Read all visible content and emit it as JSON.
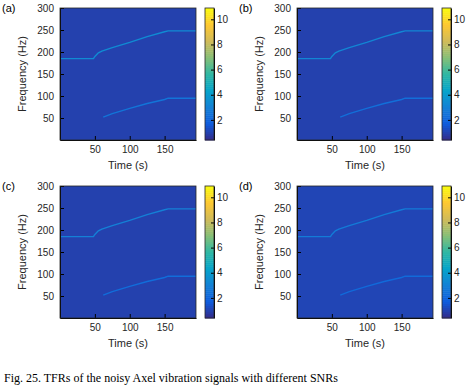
{
  "caption": "Fig. 25.  TFRs of the noisy Axel vibration signals with different SNRs",
  "chart_data": [
    {
      "type": "heatmap",
      "title": "(a)",
      "xlabel": "Time (s)",
      "ylabel": "Frequency (Hz)",
      "xlim": [
        0,
        195
      ],
      "xticks": [
        50,
        100,
        150
      ],
      "ylim": [
        0,
        300
      ],
      "yticks": [
        50,
        100,
        150,
        200,
        250,
        300
      ],
      "colorbar": {
        "range": [
          0.4,
          10.9
        ],
        "ticks": [
          2,
          4,
          6,
          8,
          10
        ]
      },
      "background": 1,
      "series": [
        {
          "x": [
            0,
            48,
            50,
            55,
            60,
            75,
            100,
            125,
            150,
            155,
            195
          ],
          "values": [
            185,
            185,
            190,
            198,
            202,
            210,
            222,
            235,
            246,
            248,
            248
          ],
          "level": 3.4
        },
        {
          "x": [
            62,
            75,
            100,
            125,
            150,
            155,
            195
          ],
          "values": [
            52,
            60,
            72,
            83,
            92,
            95,
            95
          ],
          "level": 2.6
        }
      ]
    },
    {
      "type": "heatmap",
      "title": "(b)",
      "xlabel": "Time (s)",
      "ylabel": "Frequency (Hz)",
      "xlim": [
        0,
        195
      ],
      "xticks": [
        50,
        100,
        150
      ],
      "ylim": [
        0,
        300
      ],
      "yticks": [
        50,
        100,
        150,
        200,
        250,
        300
      ],
      "colorbar": {
        "range": [
          0.4,
          10.9
        ],
        "ticks": [
          2,
          4,
          6,
          8,
          10
        ]
      },
      "background": 1,
      "series": [
        {
          "x": [
            0,
            48,
            50,
            55,
            60,
            75,
            100,
            125,
            150,
            155,
            195
          ],
          "values": [
            185,
            185,
            190,
            198,
            202,
            210,
            222,
            235,
            246,
            248,
            248
          ],
          "level": 3.2
        },
        {
          "x": [
            62,
            75,
            100,
            125,
            150,
            155,
            195
          ],
          "values": [
            52,
            60,
            72,
            83,
            92,
            95,
            95
          ],
          "level": 2.4
        }
      ]
    },
    {
      "type": "heatmap",
      "title": "(c)",
      "xlabel": "Time (s)",
      "ylabel": "Frequency (Hz)",
      "xlim": [
        0,
        195
      ],
      "xticks": [
        50,
        100,
        150
      ],
      "ylim": [
        0,
        300
      ],
      "yticks": [
        50,
        100,
        150,
        200,
        250,
        300
      ],
      "colorbar": {
        "range": [
          0.4,
          10.9
        ],
        "ticks": [
          2,
          4,
          6,
          8,
          10
        ]
      },
      "background": 1,
      "series": [
        {
          "x": [
            0,
            48,
            50,
            55,
            60,
            75,
            100,
            125,
            150,
            155,
            195
          ],
          "values": [
            185,
            185,
            190,
            198,
            202,
            210,
            222,
            235,
            246,
            248,
            248
          ],
          "level": 3.0
        },
        {
          "x": [
            62,
            75,
            100,
            125,
            150,
            155,
            195
          ],
          "values": [
            52,
            60,
            72,
            83,
            92,
            95,
            95
          ],
          "level": 2.3
        }
      ]
    },
    {
      "type": "heatmap",
      "title": "(d)",
      "xlabel": "Time (s)",
      "ylabel": "Frequency (Hz)",
      "xlim": [
        0,
        195
      ],
      "xticks": [
        50,
        100,
        150
      ],
      "ylim": [
        0,
        300
      ],
      "yticks": [
        50,
        100,
        150,
        200,
        250,
        300
      ],
      "colorbar": {
        "range": [
          0.4,
          10.9
        ],
        "ticks": [
          2,
          4,
          6,
          8,
          10
        ]
      },
      "background": 1.1,
      "series": [
        {
          "x": [
            0,
            48,
            50,
            55,
            60,
            75,
            100,
            125,
            150,
            155,
            195
          ],
          "values": [
            185,
            185,
            190,
            198,
            202,
            210,
            222,
            235,
            246,
            248,
            248
          ],
          "level": 2.8
        },
        {
          "x": [
            62,
            75,
            100,
            125,
            150,
            155,
            195
          ],
          "values": [
            52,
            60,
            72,
            83,
            92,
            95,
            95
          ],
          "level": 2.2
        }
      ]
    }
  ]
}
